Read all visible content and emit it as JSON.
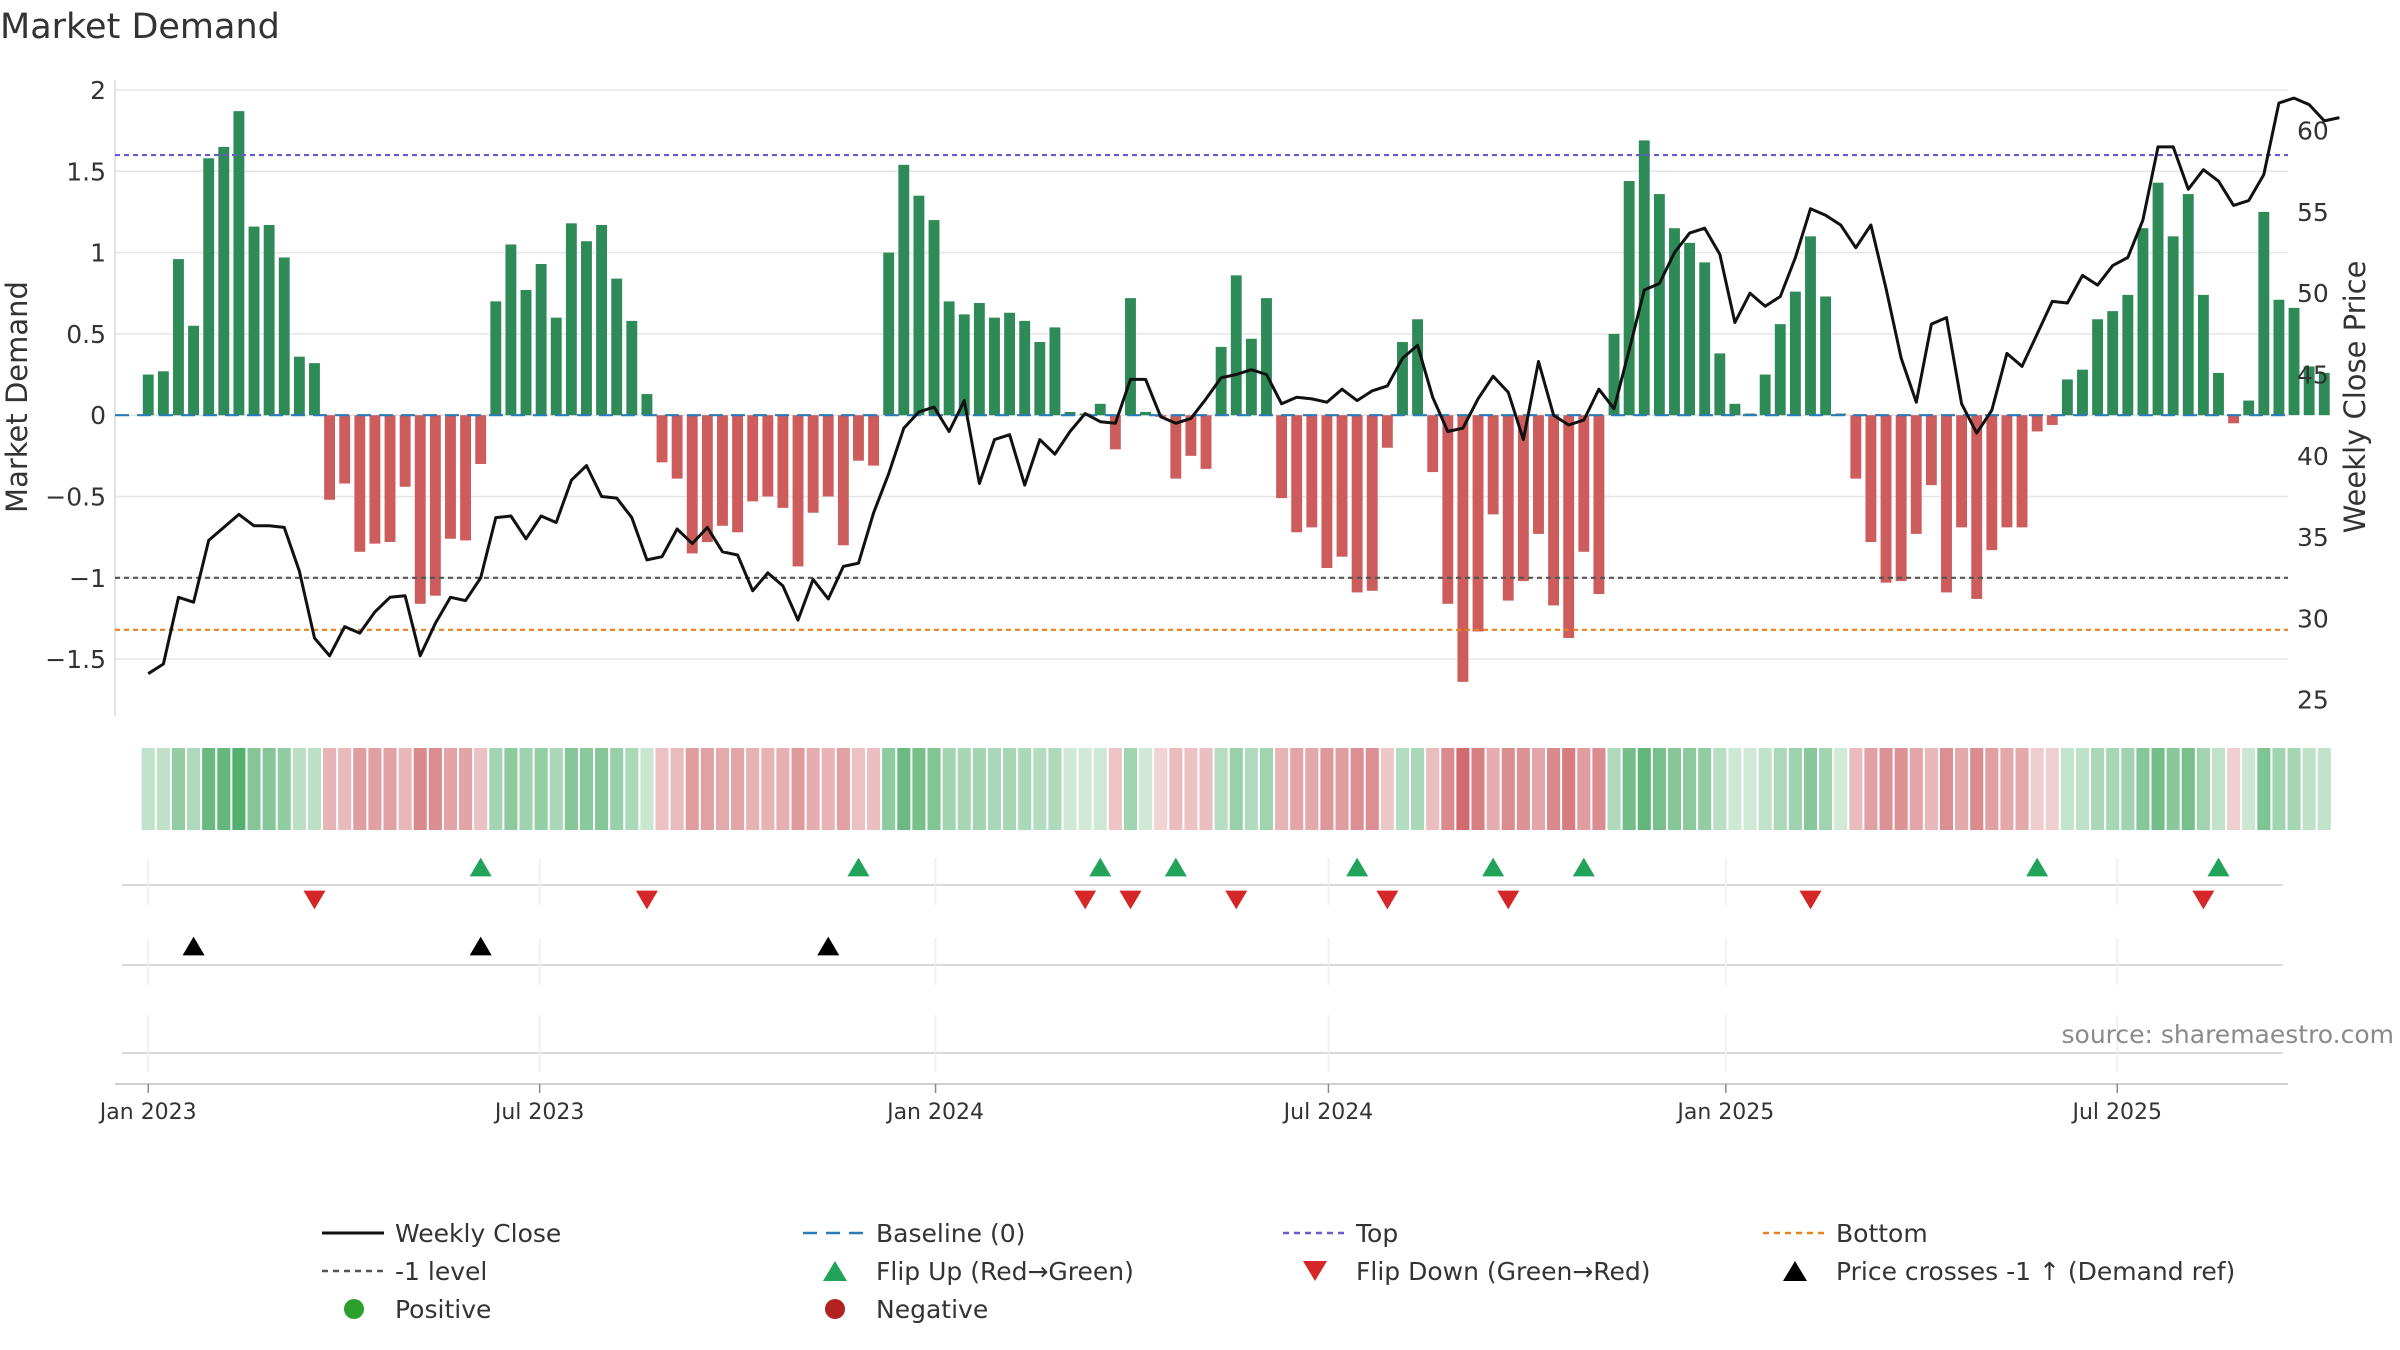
{
  "chart_data": {
    "type": "bar",
    "title": "Market Demand",
    "ylabel": "Market Demand",
    "ylabel_right": "Weekly Close Price",
    "ylim": [
      -1.85,
      2.0
    ],
    "ylim_right": [
      24,
      62.5
    ],
    "yticks": [
      -1.5,
      -1,
      -0.5,
      0,
      0.5,
      1,
      1.5,
      2
    ],
    "ytick_labels": [
      "−1.5",
      "−1",
      "−0.5",
      "0",
      "0.5",
      "1",
      "1.5",
      "2"
    ],
    "yticks_right": [
      25,
      30,
      35,
      40,
      45,
      50,
      55,
      60
    ],
    "x_start": "2023-01-02",
    "x_step_weeks": 1,
    "xlim_weeks": [
      -2.2,
      141.6
    ],
    "xticks": [
      {
        "label": "Jan 2023",
        "week": 0
      },
      {
        "label": "Jul 2023",
        "week": 25.9
      },
      {
        "label": "Jan 2024",
        "week": 52.1
      },
      {
        "label": "Jul 2024",
        "week": 78.1
      },
      {
        "label": "Jan 2025",
        "week": 104.4
      },
      {
        "label": "Jul 2025",
        "week": 130.3
      }
    ],
    "reference_lines": {
      "top": 1.6,
      "bottom": -1.32,
      "minus_one": -1.0,
      "baseline": 0
    },
    "demand": [
      0.25,
      0.27,
      0.96,
      0.55,
      1.58,
      1.65,
      1.87,
      1.16,
      1.17,
      0.97,
      0.36,
      0.32,
      -0.52,
      -0.42,
      -0.84,
      -0.79,
      -0.78,
      -0.44,
      -1.16,
      -1.11,
      -0.76,
      -0.77,
      -0.3,
      0.7,
      1.05,
      0.77,
      0.93,
      0.6,
      1.18,
      1.07,
      1.17,
      0.84,
      0.58,
      0.13,
      -0.29,
      -0.39,
      -0.85,
      -0.78,
      -0.68,
      -0.72,
      -0.53,
      -0.5,
      -0.57,
      -0.93,
      -0.6,
      -0.5,
      -0.8,
      -0.28,
      -0.31,
      1.0,
      1.54,
      1.35,
      1.2,
      0.7,
      0.62,
      0.69,
      0.6,
      0.63,
      0.58,
      0.45,
      0.54,
      0.02,
      0.01,
      0.07,
      -0.21,
      0.72,
      0.02,
      -0.01,
      -0.39,
      -0.25,
      -0.33,
      0.42,
      0.86,
      0.47,
      0.72,
      -0.51,
      -0.72,
      -0.69,
      -0.94,
      -0.87,
      -1.09,
      -1.08,
      -0.2,
      0.45,
      0.59,
      -0.35,
      -1.16,
      -1.64,
      -1.33,
      -0.61,
      -1.14,
      -1.02,
      -0.73,
      -1.17,
      -1.37,
      -0.84,
      -1.1,
      0.5,
      1.44,
      1.69,
      1.36,
      1.15,
      1.06,
      0.94,
      0.38,
      0.07,
      0.01,
      0.25,
      0.56,
      0.76,
      1.1,
      0.73,
      0.01,
      -0.39,
      -0.78,
      -1.03,
      -1.02,
      -0.73,
      -0.43,
      -1.09,
      -0.69,
      -1.13,
      -0.83,
      -0.69,
      -0.69,
      -0.1,
      -0.06,
      0.22,
      0.28,
      0.59,
      0.64,
      0.74,
      1.15,
      1.43,
      1.1,
      1.36,
      0.74,
      0.26,
      -0.05,
      0.09,
      1.25,
      0.71,
      0.66,
      0.3,
      0.26
    ],
    "weekly_close": [
      26.6,
      27.2,
      31.3,
      31.0,
      34.8,
      35.6,
      36.4,
      35.7,
      35.7,
      35.6,
      32.9,
      28.8,
      27.7,
      29.5,
      29.1,
      30.4,
      31.3,
      31.4,
      27.7,
      29.7,
      31.3,
      31.1,
      32.5,
      36.2,
      36.3,
      34.9,
      36.3,
      35.9,
      38.5,
      39.4,
      37.5,
      37.4,
      36.2,
      33.6,
      33.8,
      35.5,
      34.6,
      35.6,
      34.1,
      33.9,
      31.7,
      32.8,
      32.0,
      29.9,
      32.4,
      31.2,
      33.2,
      33.4,
      36.5,
      38.9,
      41.7,
      42.7,
      43.0,
      41.5,
      43.4,
      38.3,
      41.0,
      41.3,
      38.2,
      41.0,
      40.1,
      41.5,
      42.6,
      42.1,
      42.0,
      44.7,
      44.7,
      42.4,
      42.0,
      42.3,
      43.5,
      44.8,
      45.0,
      45.3,
      45.0,
      43.2,
      43.6,
      43.5,
      43.3,
      44.1,
      43.4,
      44.0,
      44.3,
      46.0,
      46.8,
      43.6,
      41.5,
      41.7,
      43.5,
      44.9,
      43.9,
      41.0,
      45.8,
      42.5,
      41.9,
      42.2,
      44.1,
      42.9,
      46.5,
      50.2,
      50.6,
      52.5,
      53.7,
      54.0,
      52.4,
      48.2,
      50.0,
      49.2,
      49.8,
      52.2,
      55.2,
      54.8,
      54.2,
      52.8,
      54.2,
      50.3,
      46.0,
      43.3,
      48.1,
      48.5,
      43.2,
      41.4,
      42.8,
      46.3,
      45.5,
      47.5,
      49.5,
      49.4,
      51.1,
      50.5,
      51.7,
      52.2,
      54.5,
      59.0,
      59.0,
      56.4,
      57.6,
      56.9,
      55.4,
      55.7,
      57.3,
      61.7,
      62.0,
      61.6,
      60.6,
      60.8
    ],
    "flip_up_weeks": [
      22,
      47,
      63,
      68,
      80,
      89,
      95,
      125,
      137
    ],
    "flip_down_weeks": [
      11,
      33,
      62,
      65,
      72,
      82,
      90,
      110,
      136
    ],
    "price_cross_weeks": [
      3,
      22,
      45
    ],
    "source_note": "source: sharemaestro.com",
    "legend": [
      {
        "label": "Weekly Close",
        "style": "line",
        "color": "#111111"
      },
      {
        "label": "Baseline (0)",
        "style": "dash",
        "color": "#2b7bb9"
      },
      {
        "label": "Top",
        "style": "dot",
        "color": "#6a5acd"
      },
      {
        "label": "Bottom",
        "style": "dot",
        "color": "#e8821f"
      },
      {
        "label": "-1 level",
        "style": "dot",
        "color": "#555555"
      },
      {
        "label": "Flip Up (Red→Green)",
        "style": "tri-up",
        "color": "#22a35a"
      },
      {
        "label": "Flip Down (Green→Red)",
        "style": "tri-down",
        "color": "#d62728"
      },
      {
        "label": "Price crosses -1 ↑ (Demand ref)",
        "style": "tri-up",
        "color": "#000000"
      },
      {
        "label": "Positive",
        "style": "circle",
        "color": "#2ca02c"
      },
      {
        "label": "Negative",
        "style": "circle",
        "color": "#b22222"
      }
    ],
    "colors": {
      "positive_bar": "#2e8b57",
      "negative_bar": "#cd5c5c",
      "heat_positive": "#2e9e4f",
      "heat_negative": "#c0383d",
      "price_line": "#111111",
      "grid": "#e6e6e6"
    }
  }
}
